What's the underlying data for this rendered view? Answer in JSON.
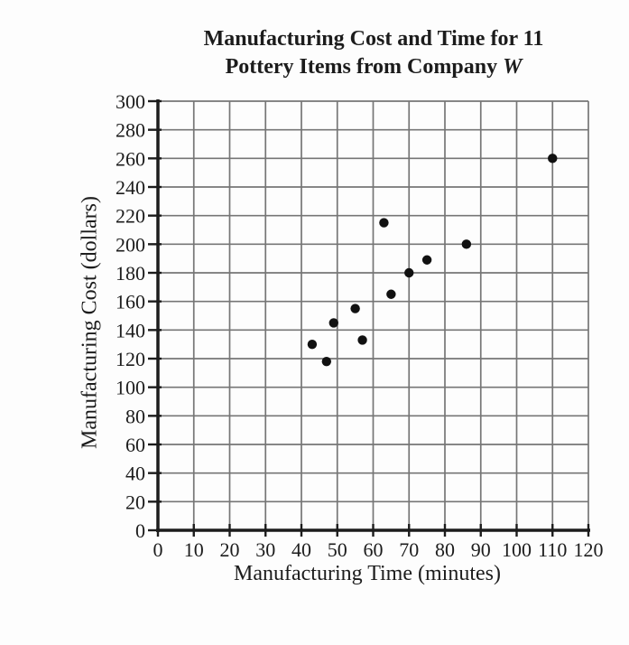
{
  "chart": {
    "title_line1": "Manufacturing Cost and Time for 11",
    "title_line2_text": "Pottery Items from Company",
    "title_line2_company": "W",
    "x_label": "Manufacturing Time (minutes)",
    "y_label": "Manufacturing Cost (dollars)"
  },
  "chart_data": {
    "type": "scatter",
    "title": "Manufacturing Cost and Time for 11 Pottery Items from Company W",
    "xlabel": "Manufacturing Time (minutes)",
    "ylabel": "Manufacturing Cost (dollars)",
    "xlim": [
      0,
      120
    ],
    "ylim": [
      0,
      300
    ],
    "x_ticks": [
      0,
      10,
      20,
      30,
      40,
      50,
      60,
      70,
      80,
      90,
      100,
      110,
      120
    ],
    "y_ticks": [
      0,
      20,
      40,
      60,
      80,
      100,
      120,
      140,
      160,
      180,
      200,
      220,
      240,
      260,
      280,
      300
    ],
    "grid": true,
    "legend": false,
    "points": [
      {
        "x": 43,
        "y": 130
      },
      {
        "x": 47,
        "y": 118
      },
      {
        "x": 49,
        "y": 145
      },
      {
        "x": 55,
        "y": 155
      },
      {
        "x": 57,
        "y": 133
      },
      {
        "x": 63,
        "y": 215
      },
      {
        "x": 65,
        "y": 165
      },
      {
        "x": 70,
        "y": 180
      },
      {
        "x": 75,
        "y": 189
      },
      {
        "x": 86,
        "y": 200
      },
      {
        "x": 110,
        "y": 260
      }
    ],
    "colors": {
      "point": "#111111",
      "grid": "#767676",
      "axis": "#1c1c1c",
      "text": "#1c1c1c",
      "background": "#fdfdfd"
    }
  }
}
